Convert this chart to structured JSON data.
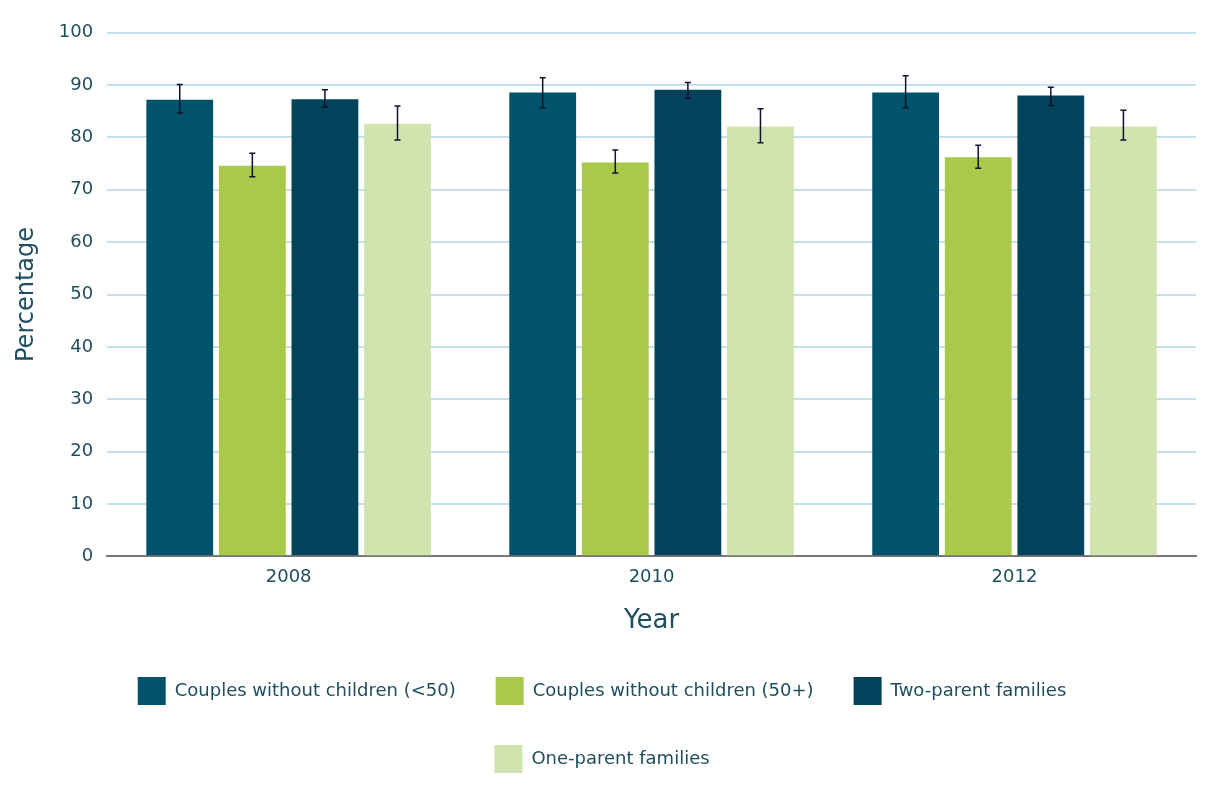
{
  "chart_data": {
    "type": "bar",
    "xlabel": "Year",
    "ylabel": "Percentage",
    "categories": [
      "2008",
      "2010",
      "2012"
    ],
    "series": [
      {
        "name": "Couples without children (<50)",
        "color": "#00536a",
        "values": [
          87.2,
          88.6,
          88.6
        ],
        "errors": [
          [
            84.7,
            90.1
          ],
          [
            85.7,
            91.4
          ],
          [
            85.7,
            91.8
          ]
        ]
      },
      {
        "name": "Couples without children (50+)",
        "color": "#a8c94a",
        "values": [
          74.6,
          75.2,
          76.2
        ],
        "errors": [
          [
            72.5,
            77.0
          ],
          [
            73.2,
            77.6
          ],
          [
            74.1,
            78.5
          ]
        ]
      },
      {
        "name": "Two-parent families",
        "color": "#00435a",
        "values": [
          87.3,
          89.1,
          88.0
        ],
        "errors": [
          [
            85.8,
            89.1
          ],
          [
            87.5,
            90.5
          ],
          [
            86.1,
            89.6
          ]
        ]
      },
      {
        "name": "One-parent families",
        "color": "#d1e4b0",
        "values": [
          82.6,
          82.1,
          82.1
        ],
        "errors": [
          [
            79.5,
            86.0
          ],
          [
            79.0,
            85.5
          ],
          [
            79.5,
            85.2
          ]
        ]
      }
    ],
    "ylim": [
      0,
      100
    ],
    "yticks": [
      0,
      10,
      20,
      30,
      40,
      50,
      60,
      70,
      80,
      90,
      100
    ],
    "grid": "y",
    "legend": "bottom"
  }
}
